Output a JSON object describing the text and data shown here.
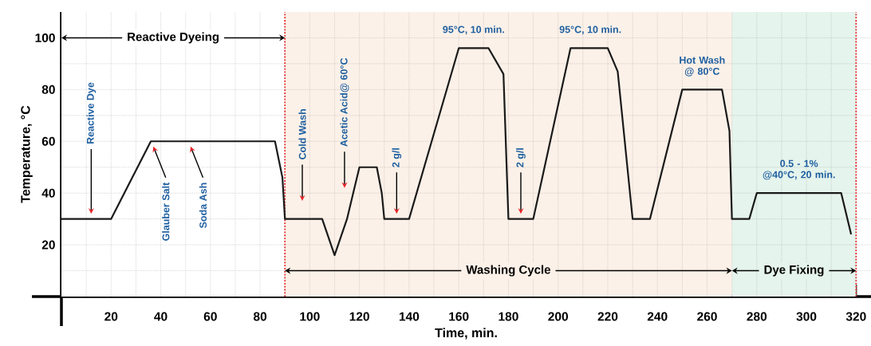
{
  "chart_data": {
    "type": "line",
    "xlabel": "Time, min.",
    "ylabel": "Temperature, °C",
    "x": [
      0,
      20,
      36,
      86,
      89,
      89.5,
      90,
      105,
      110,
      112,
      115,
      120,
      127,
      129,
      129.5,
      130,
      140,
      160,
      172,
      178,
      179,
      180,
      190,
      205,
      220,
      224,
      227,
      230,
      237,
      250,
      266,
      269,
      269.5,
      270,
      277,
      280,
      314,
      318
    ],
    "series": [
      {
        "color": "#1a1a1a",
        "values": [
          30,
          30,
          60,
          60,
          46,
          null,
          30,
          30,
          16,
          null,
          30,
          50,
          50,
          40,
          null,
          30,
          30,
          96,
          96,
          86,
          null,
          30,
          30,
          96,
          96,
          87,
          null,
          30,
          30,
          80,
          80,
          64,
          null,
          30,
          30,
          40,
          40,
          24
        ]
      }
    ],
    "xlim": [
      0,
      326
    ],
    "ylim": [
      0,
      110
    ],
    "xticks": [
      20,
      40,
      60,
      80,
      100,
      120,
      140,
      160,
      180,
      200,
      220,
      240,
      260,
      280,
      300,
      320
    ],
    "yticks": [
      20,
      40,
      60,
      80,
      100
    ],
    "grid": true,
    "marker": "none",
    "line_style": "solid",
    "bands": [
      {
        "axis": "x",
        "from": 0,
        "to": 90,
        "label": "Reactive Dyeing",
        "color": "#ffffff"
      },
      {
        "axis": "x",
        "from": 90,
        "to": 270,
        "label": "Washing Cycle",
        "color": "#fcf1e8"
      },
      {
        "axis": "x",
        "from": 270,
        "to": 320,
        "label": "Dye Fixing",
        "color": "#e5f4ec"
      }
    ],
    "ref_lines": [
      {
        "axis": "x",
        "value": 90,
        "color": "#e8262a",
        "line_style": "dotted"
      },
      {
        "axis": "x",
        "value": 320,
        "color": "#e8262a",
        "line_style": "dotted"
      }
    ],
    "annotations": [
      "Reactive Dye",
      "Glauber Salt",
      "Soda Ash",
      "Cold Wash",
      "Acetic Acid@ 60°C",
      "2 g/l",
      "2 g/l",
      "95°C, 10 min.",
      "95°C, 10 min.",
      "Hot Wash @ 80°C",
      "0.5 - 1% @40°C, 20 min."
    ]
  }
}
